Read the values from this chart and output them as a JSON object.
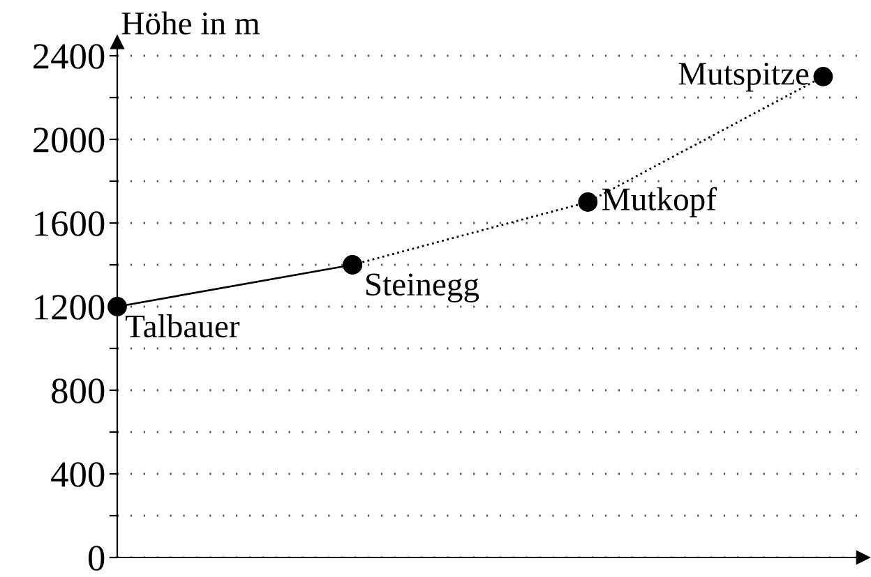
{
  "chart_data": {
    "type": "line",
    "ylabel": "Höhe in m",
    "categories": [
      null,
      null,
      null,
      null
    ],
    "series": [
      {
        "values": [
          1200,
          1400,
          null,
          null
        ],
        "color": "#000000",
        "line_style": "solid"
      },
      {
        "values": [
          null,
          1400,
          1700,
          2300
        ],
        "color": "#000000",
        "line_style": "dotted"
      }
    ],
    "marker": "circle",
    "ylim": [
      0,
      2440
    ],
    "yticks": [
      0,
      {
        "value": 200,
        "label": null
      },
      400,
      {
        "value": 600,
        "label": null
      },
      800,
      {
        "value": 1000,
        "label": null
      },
      1200,
      {
        "value": 1400,
        "label": null
      },
      1600,
      {
        "value": 1800,
        "label": null
      },
      2000,
      {
        "value": 2200,
        "label": null
      },
      2400
    ],
    "tick_labels": "y",
    "grid": "y",
    "annotations": [
      "Talbauer",
      "Steinegg",
      "Mutkopf",
      "Mutspitze"
    ]
  }
}
